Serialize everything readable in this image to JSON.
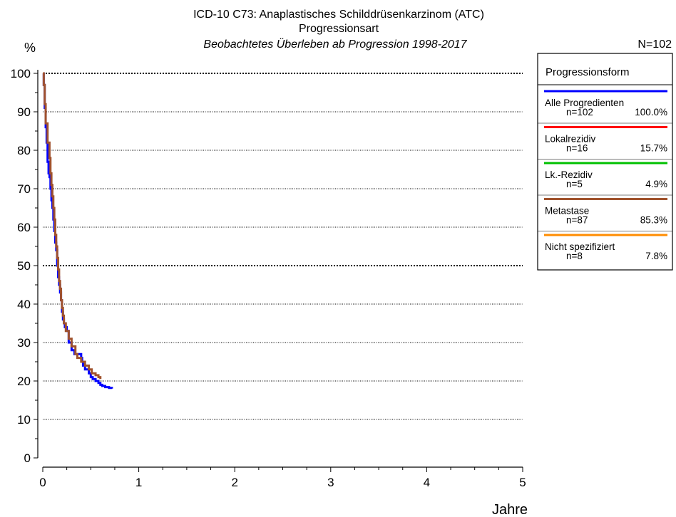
{
  "header": {
    "title_line1": "ICD-10 C73: Anaplastisches Schilddrüsenkarzinom (ATC)",
    "title_line2": "Progressionsart",
    "title_line3": "Beobachtetes Überleben ab Progression 1998-2017",
    "n_total": "N=102",
    "y_unit": "%"
  },
  "legend": {
    "title": "Progressionsform",
    "items": [
      {
        "name": "Alle Progredienten",
        "n": "n=102",
        "pct": "100.0%",
        "color": "#0000ff"
      },
      {
        "name": "Lokalrezidiv",
        "n": "n=16",
        "pct": "15.7%",
        "color": "#ff0000"
      },
      {
        "name": "Lk.-Rezidiv",
        "n": "n=5",
        "pct": "4.9%",
        "color": "#00c000"
      },
      {
        "name": "Metastase",
        "n": "n=87",
        "pct": "85.3%",
        "color": "#a0522d"
      },
      {
        "name": "Nicht spezifiziert",
        "n": "n=8",
        "pct": "7.8%",
        "color": "#ff8c00"
      }
    ]
  },
  "chart_data": {
    "type": "line",
    "xlabel": "Jahre",
    "ylabel": "%",
    "xlim": [
      0,
      5
    ],
    "ylim": [
      0,
      100
    ],
    "xticks": [
      0,
      1,
      2,
      3,
      4,
      5
    ],
    "yticks": [
      0,
      10,
      20,
      30,
      40,
      50,
      60,
      70,
      80,
      90,
      100
    ],
    "grid": "horizontal dotted",
    "series": [
      {
        "name": "Alle Progredienten",
        "color": "#0000ff",
        "step": true,
        "x": [
          0,
          0.01,
          0.02,
          0.03,
          0.04,
          0.05,
          0.06,
          0.07,
          0.08,
          0.09,
          0.1,
          0.11,
          0.12,
          0.13,
          0.14,
          0.15,
          0.16,
          0.17,
          0.18,
          0.19,
          0.2,
          0.21,
          0.22,
          0.23,
          0.25,
          0.27,
          0.3,
          0.33,
          0.4,
          0.41,
          0.42,
          0.44,
          0.48,
          0.5,
          0.52,
          0.55,
          0.58,
          0.6,
          0.62,
          0.65,
          0.69,
          0.72
        ],
        "y": [
          100,
          97,
          91,
          86,
          82,
          77,
          74,
          73,
          70,
          67,
          65,
          62,
          59,
          56,
          54,
          50,
          47,
          45,
          43,
          41,
          38,
          36,
          35,
          34,
          33,
          30,
          28,
          27,
          26,
          25,
          24,
          23,
          22,
          21,
          20.5,
          20,
          19.5,
          19,
          18.7,
          18.4,
          18.2,
          18
        ]
      },
      {
        "name": "Metastase",
        "color": "#a0522d",
        "step": true,
        "x": [
          0,
          0.01,
          0.02,
          0.03,
          0.05,
          0.07,
          0.08,
          0.09,
          0.1,
          0.11,
          0.12,
          0.13,
          0.14,
          0.15,
          0.16,
          0.17,
          0.18,
          0.19,
          0.2,
          0.21,
          0.22,
          0.24,
          0.27,
          0.3,
          0.34,
          0.36,
          0.4,
          0.44,
          0.48,
          0.51,
          0.55,
          0.58,
          0.6
        ],
        "y": [
          100,
          97,
          92,
          87,
          82,
          78,
          74,
          71,
          68,
          65,
          62,
          58,
          55,
          52,
          49,
          46,
          44,
          41,
          39,
          37,
          35,
          33,
          31,
          29,
          27,
          26,
          25,
          24,
          23,
          22,
          21.5,
          21,
          20.5
        ]
      }
    ]
  }
}
